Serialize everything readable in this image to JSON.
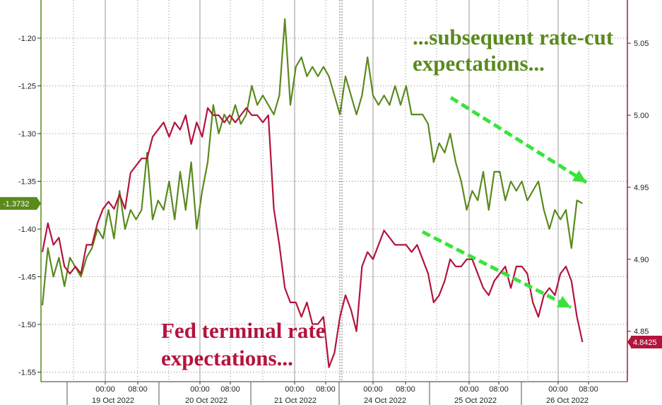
{
  "chart_data": {
    "type": "line",
    "colors": {
      "green": "#5a8a1e",
      "red": "#b3143c",
      "arrow": "#39e33c",
      "grid": "#888888"
    },
    "left_axis": {
      "ylim": [
        -1.56,
        -1.16
      ],
      "ticks": [
        "-1.20",
        "-1.25",
        "-1.30",
        "-1.35",
        "-1.40",
        "-1.45",
        "-1.50",
        "-1.55"
      ],
      "tick_values": [
        -1.2,
        -1.25,
        -1.3,
        -1.35,
        -1.4,
        -1.45,
        -1.5,
        -1.55
      ]
    },
    "right_axis": {
      "ylim": [
        4.815,
        5.08
      ],
      "ticks": [
        "5.05",
        "5.00",
        "4.95",
        "4.90",
        "4.85"
      ],
      "tick_values": [
        5.05,
        5.0,
        4.95,
        4.9,
        4.85
      ]
    },
    "x_axis": {
      "time_labels": [
        "00:00",
        "08:00",
        "00:00",
        "08:00",
        "00:00",
        "08:00",
        "00:00",
        "08:00",
        "00:00",
        "08:00",
        "00:00",
        "08:00"
      ],
      "date_labels": [
        "19 Oct 2022",
        "20 Oct 2022",
        "21 Oct 2022",
        "24 Oct 2022",
        "25 Oct 2022",
        "26 Oct 2022"
      ]
    },
    "series": [
      {
        "axis": "left",
        "color": "#5a8a1e",
        "last_value_label": "-1.3732",
        "points": [
          [
            0.0,
            -1.48
          ],
          [
            0.01,
            -1.42
          ],
          [
            0.02,
            -1.45
          ],
          [
            0.03,
            -1.43
          ],
          [
            0.04,
            -1.46
          ],
          [
            0.05,
            -1.43
          ],
          [
            0.06,
            -1.44
          ],
          [
            0.07,
            -1.45
          ],
          [
            0.08,
            -1.43
          ],
          [
            0.09,
            -1.42
          ],
          [
            0.1,
            -1.4
          ],
          [
            0.11,
            -1.41
          ],
          [
            0.12,
            -1.38
          ],
          [
            0.13,
            -1.41
          ],
          [
            0.14,
            -1.36
          ],
          [
            0.15,
            -1.4
          ],
          [
            0.16,
            -1.38
          ],
          [
            0.17,
            -1.39
          ],
          [
            0.18,
            -1.38
          ],
          [
            0.19,
            -1.32
          ],
          [
            0.2,
            -1.39
          ],
          [
            0.21,
            -1.37
          ],
          [
            0.22,
            -1.38
          ],
          [
            0.23,
            -1.35
          ],
          [
            0.24,
            -1.39
          ],
          [
            0.25,
            -1.34
          ],
          [
            0.26,
            -1.38
          ],
          [
            0.27,
            -1.33
          ],
          [
            0.28,
            -1.4
          ],
          [
            0.29,
            -1.36
          ],
          [
            0.3,
            -1.33
          ],
          [
            0.31,
            -1.27
          ],
          [
            0.32,
            -1.3
          ],
          [
            0.33,
            -1.28
          ],
          [
            0.34,
            -1.29
          ],
          [
            0.35,
            -1.27
          ],
          [
            0.36,
            -1.29
          ],
          [
            0.37,
            -1.28
          ],
          [
            0.38,
            -1.25
          ],
          [
            0.39,
            -1.27
          ],
          [
            0.4,
            -1.26
          ],
          [
            0.41,
            -1.27
          ],
          [
            0.42,
            -1.28
          ],
          [
            0.43,
            -1.26
          ],
          [
            0.44,
            -1.18
          ],
          [
            0.45,
            -1.27
          ],
          [
            0.46,
            -1.23
          ],
          [
            0.47,
            -1.22
          ],
          [
            0.48,
            -1.24
          ],
          [
            0.49,
            -1.23
          ],
          [
            0.5,
            -1.24
          ],
          [
            0.51,
            -1.23
          ],
          [
            0.52,
            -1.24
          ],
          [
            0.53,
            -1.26
          ],
          [
            0.54,
            -1.28
          ],
          [
            0.55,
            -1.24
          ],
          [
            0.56,
            -1.26
          ],
          [
            0.57,
            -1.28
          ],
          [
            0.58,
            -1.26
          ],
          [
            0.59,
            -1.22
          ],
          [
            0.6,
            -1.26
          ],
          [
            0.61,
            -1.27
          ],
          [
            0.62,
            -1.26
          ],
          [
            0.63,
            -1.27
          ],
          [
            0.64,
            -1.25
          ],
          [
            0.65,
            -1.27
          ],
          [
            0.66,
            -1.25
          ],
          [
            0.67,
            -1.28
          ],
          [
            0.68,
            -1.28
          ],
          [
            0.69,
            -1.28
          ],
          [
            0.7,
            -1.29
          ],
          [
            0.71,
            -1.33
          ],
          [
            0.72,
            -1.31
          ],
          [
            0.73,
            -1.32
          ],
          [
            0.74,
            -1.3
          ],
          [
            0.75,
            -1.33
          ],
          [
            0.76,
            -1.35
          ],
          [
            0.77,
            -1.38
          ],
          [
            0.78,
            -1.36
          ],
          [
            0.79,
            -1.37
          ],
          [
            0.8,
            -1.34
          ],
          [
            0.81,
            -1.38
          ],
          [
            0.82,
            -1.34
          ],
          [
            0.83,
            -1.34
          ],
          [
            0.84,
            -1.37
          ],
          [
            0.85,
            -1.35
          ],
          [
            0.86,
            -1.36
          ],
          [
            0.87,
            -1.35
          ],
          [
            0.88,
            -1.37
          ],
          [
            0.89,
            -1.36
          ],
          [
            0.9,
            -1.35
          ],
          [
            0.91,
            -1.38
          ],
          [
            0.92,
            -1.4
          ],
          [
            0.93,
            -1.38
          ],
          [
            0.94,
            -1.39
          ],
          [
            0.95,
            -1.38
          ],
          [
            0.96,
            -1.42
          ],
          [
            0.97,
            -1.37
          ],
          [
            0.98,
            -1.3732
          ]
        ]
      },
      {
        "axis": "right",
        "color": "#b3143c",
        "last_value_label": "4.8425",
        "points": [
          [
            0.0,
            4.905
          ],
          [
            0.01,
            4.925
          ],
          [
            0.02,
            4.91
          ],
          [
            0.03,
            4.915
          ],
          [
            0.04,
            4.895
          ],
          [
            0.05,
            4.89
          ],
          [
            0.06,
            4.895
          ],
          [
            0.07,
            4.89
          ],
          [
            0.08,
            4.91
          ],
          [
            0.09,
            4.91
          ],
          [
            0.1,
            4.925
          ],
          [
            0.11,
            4.935
          ],
          [
            0.12,
            4.94
          ],
          [
            0.13,
            4.935
          ],
          [
            0.14,
            4.945
          ],
          [
            0.15,
            4.935
          ],
          [
            0.16,
            4.96
          ],
          [
            0.17,
            4.965
          ],
          [
            0.18,
            4.97
          ],
          [
            0.19,
            4.97
          ],
          [
            0.2,
            4.985
          ],
          [
            0.21,
            4.99
          ],
          [
            0.22,
            4.995
          ],
          [
            0.23,
            4.985
          ],
          [
            0.24,
            4.995
          ],
          [
            0.25,
            4.99
          ],
          [
            0.26,
            5.0
          ],
          [
            0.27,
            4.98
          ],
          [
            0.28,
            4.995
          ],
          [
            0.29,
            4.985
          ],
          [
            0.3,
            5.005
          ],
          [
            0.31,
            5.0
          ],
          [
            0.32,
            5.0
          ],
          [
            0.33,
            4.995
          ],
          [
            0.34,
            5.0
          ],
          [
            0.35,
            4.995
          ],
          [
            0.36,
            5.0
          ],
          [
            0.37,
            5.005
          ],
          [
            0.38,
            5.0
          ],
          [
            0.39,
            5.0
          ],
          [
            0.4,
            4.995
          ],
          [
            0.41,
            5.0
          ],
          [
            0.42,
            4.935
          ],
          [
            0.43,
            4.91
          ],
          [
            0.44,
            4.88
          ],
          [
            0.45,
            4.87
          ],
          [
            0.46,
            4.87
          ],
          [
            0.47,
            4.86
          ],
          [
            0.48,
            4.87
          ],
          [
            0.49,
            4.855
          ],
          [
            0.5,
            4.855
          ],
          [
            0.51,
            4.86
          ],
          [
            0.52,
            4.825
          ],
          [
            0.53,
            4.835
          ],
          [
            0.54,
            4.86
          ],
          [
            0.55,
            4.875
          ],
          [
            0.56,
            4.865
          ],
          [
            0.57,
            4.85
          ],
          [
            0.58,
            4.895
          ],
          [
            0.59,
            4.905
          ],
          [
            0.6,
            4.9
          ],
          [
            0.61,
            4.91
          ],
          [
            0.62,
            4.92
          ],
          [
            0.63,
            4.915
          ],
          [
            0.64,
            4.91
          ],
          [
            0.65,
            4.91
          ],
          [
            0.66,
            4.91
          ],
          [
            0.67,
            4.905
          ],
          [
            0.68,
            4.91
          ],
          [
            0.69,
            4.9
          ],
          [
            0.7,
            4.89
          ],
          [
            0.71,
            4.87
          ],
          [
            0.72,
            4.875
          ],
          [
            0.73,
            4.885
          ],
          [
            0.74,
            4.9
          ],
          [
            0.75,
            4.895
          ],
          [
            0.76,
            4.895
          ],
          [
            0.77,
            4.9
          ],
          [
            0.78,
            4.9
          ],
          [
            0.79,
            4.89
          ],
          [
            0.8,
            4.88
          ],
          [
            0.81,
            4.875
          ],
          [
            0.82,
            4.885
          ],
          [
            0.83,
            4.89
          ],
          [
            0.84,
            4.895
          ],
          [
            0.85,
            4.88
          ],
          [
            0.86,
            4.895
          ],
          [
            0.87,
            4.895
          ],
          [
            0.88,
            4.89
          ],
          [
            0.89,
            4.87
          ],
          [
            0.9,
            4.86
          ],
          [
            0.91,
            4.875
          ],
          [
            0.92,
            4.88
          ],
          [
            0.93,
            4.875
          ],
          [
            0.94,
            4.89
          ],
          [
            0.95,
            4.895
          ],
          [
            0.96,
            4.885
          ],
          [
            0.97,
            4.86
          ],
          [
            0.98,
            4.8425
          ]
        ]
      }
    ]
  },
  "annotations": {
    "green_line1": "...subsequent rate-cut",
    "green_line2": "expectations...",
    "red_line1": "Fed terminal rate",
    "red_line2": "expectations..."
  }
}
